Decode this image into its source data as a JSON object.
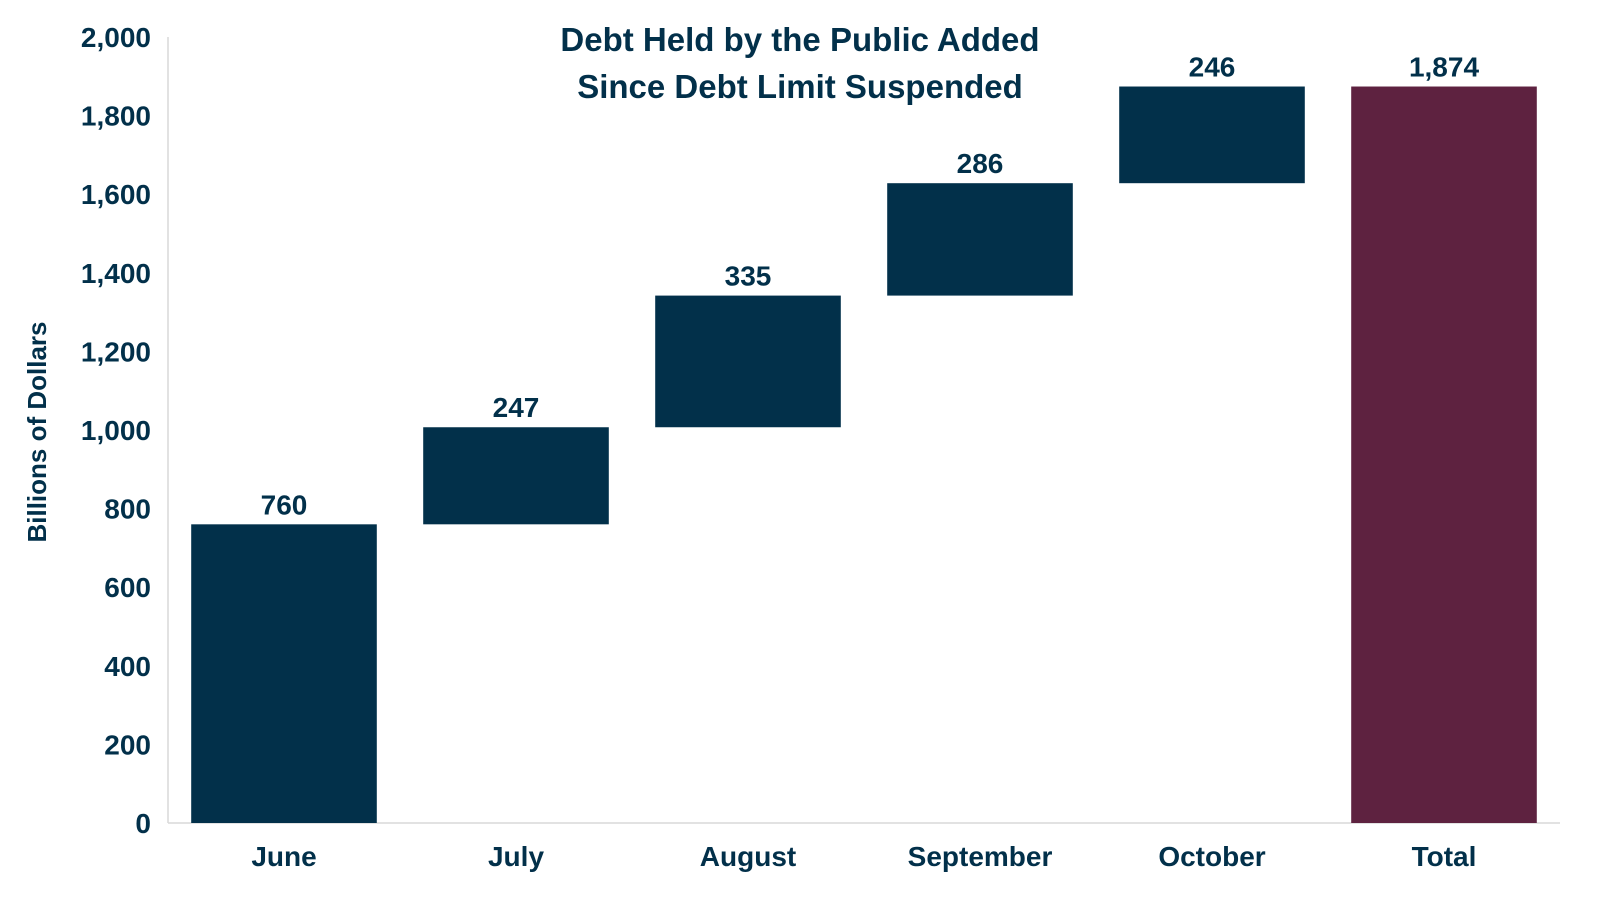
{
  "chart_data": {
    "type": "bar",
    "subtype": "waterfall",
    "title_lines": [
      "Debt Held by the Public Added",
      "Since Debt Limit Suspended"
    ],
    "xlabel": "",
    "ylabel": "Billions of Dollars",
    "ylim": [
      0,
      2000
    ],
    "yticks": [
      0,
      200,
      400,
      600,
      800,
      1000,
      1200,
      1400,
      1600,
      1800,
      2000
    ],
    "ytick_labels": [
      "0",
      "200",
      "400",
      "600",
      "800",
      "1,000",
      "1,200",
      "1,400",
      "1,600",
      "1,800",
      "2,000"
    ],
    "categories": [
      "June",
      "July",
      "August",
      "September",
      "October",
      "Total"
    ],
    "values": [
      760,
      247,
      335,
      286,
      246,
      1874
    ],
    "value_labels": [
      "760",
      "247",
      "335",
      "286",
      "246",
      "1,874"
    ],
    "is_total": [
      false,
      false,
      false,
      false,
      false,
      true
    ],
    "grid": false,
    "legend": "none",
    "colors": {
      "increment": "#02304A",
      "total": "#5E2240",
      "text": "#02304A",
      "axis": "#D9D9D9"
    }
  }
}
